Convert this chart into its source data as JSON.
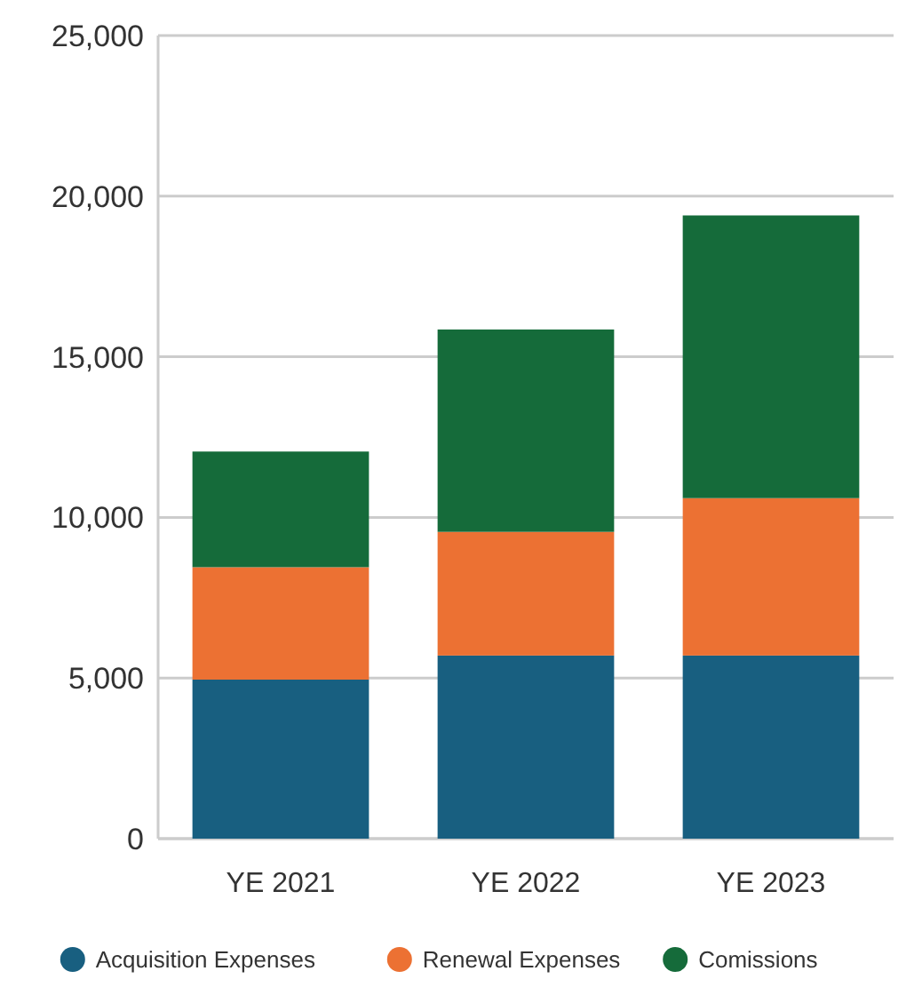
{
  "chart_data": {
    "type": "bar",
    "stacked": true,
    "categories": [
      "YE 2021",
      "YE 2022",
      "YE 2023"
    ],
    "series": [
      {
        "name": "Acquisition Expenses",
        "color": "#185f80",
        "values": [
          4950,
          5700,
          5700
        ]
      },
      {
        "name": "Renewal Expenses",
        "color": "#ec7133",
        "values": [
          3500,
          3850,
          4900
        ]
      },
      {
        "name": "Comissions",
        "color": "#156b3a",
        "values": [
          3600,
          6300,
          8800
        ]
      }
    ],
    "ylim": [
      0,
      25000
    ],
    "yticks": [
      {
        "value": 0,
        "label": "0"
      },
      {
        "value": 5000,
        "label": "5,000"
      },
      {
        "value": 10000,
        "label": "10,000"
      },
      {
        "value": 15000,
        "label": "15,000"
      },
      {
        "value": 20000,
        "label": "20,000"
      },
      {
        "value": 25000,
        "label": "25,000"
      }
    ],
    "grid": "y",
    "legend": "bottom",
    "marker": "circle"
  }
}
